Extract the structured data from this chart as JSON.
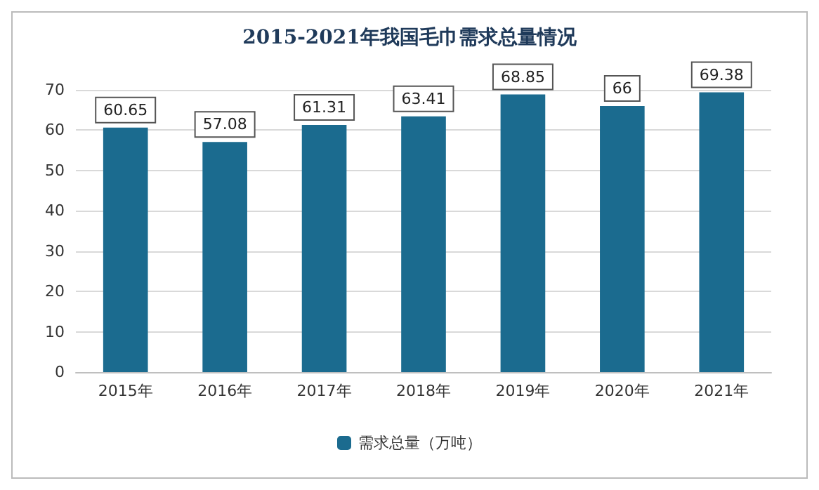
{
  "chart_data": {
    "type": "bar",
    "title": "2015-2021年我国毛巾需求总量情况",
    "categories": [
      "2015年",
      "2016年",
      "2017年",
      "2018年",
      "2019年",
      "2020年",
      "2021年"
    ],
    "series": [
      {
        "name": "需求总量（万吨）",
        "color": "#1b6b8f",
        "values": [
          60.65,
          57.08,
          61.31,
          63.41,
          68.85,
          66,
          69.38
        ]
      }
    ],
    "ylim": [
      0,
      70
    ],
    "yticks": [
      0,
      10,
      20,
      30,
      40,
      50,
      60,
      70
    ],
    "grid": "y",
    "legend": "bottom",
    "data_labels": true
  }
}
